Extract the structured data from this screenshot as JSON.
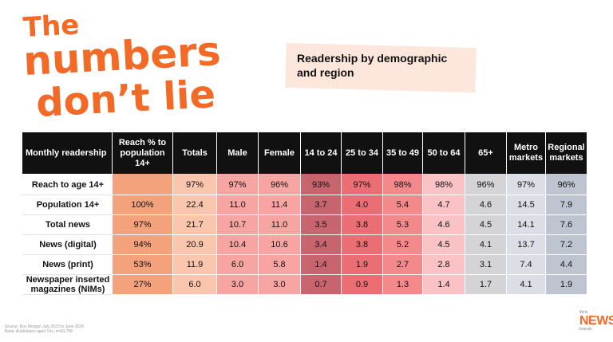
{
  "hero": {
    "line1": "The",
    "line2": "numbers",
    "line3": "don’t lie"
  },
  "subtitle": "Readership by demographic and region",
  "table": {
    "headers": [
      "Monthly readership",
      "Reach % to population 14+",
      "Totals",
      "Male",
      "Female",
      "14 to 24",
      "25 to 34",
      "35 to 49",
      "50 to 64",
      "65+",
      "Metro markets",
      "Regional markets"
    ],
    "rows": [
      {
        "label": "Reach to age 14+",
        "values": [
          "",
          "97%",
          "97%",
          "96%",
          "93%",
          "97%",
          "98%",
          "98%",
          "96%",
          "97%",
          "96%"
        ]
      },
      {
        "label": "Population 14+",
        "values": [
          "100%",
          "22.4",
          "11.0",
          "11.4",
          "3.7",
          "4.0",
          "5.4",
          "4.7",
          "4.6",
          "14.5",
          "7.9"
        ]
      },
      {
        "label": "Total news",
        "values": [
          "97%",
          "21.7",
          "10.7",
          "11.0",
          "3.5",
          "3.8",
          "5.3",
          "4.6",
          "4.5",
          "14.1",
          "7.6"
        ]
      },
      {
        "label": "News (digital)",
        "values": [
          "94%",
          "20.9",
          "10.4",
          "10.6",
          "3.4",
          "3.8",
          "5.2",
          "4.5",
          "4.1",
          "13.7",
          "7.2"
        ]
      },
      {
        "label": "News (print)",
        "values": [
          "53%",
          "11.9",
          "6.0",
          "5.8",
          "1.4",
          "1.9",
          "2.7",
          "2.8",
          "3.1",
          "7.4",
          "4.4"
        ]
      },
      {
        "label": "Newspaper inserted magazines (NIMs)",
        "values": [
          "27%",
          "6.0",
          "3.0",
          "3.0",
          "0.7",
          "0.9",
          "1.3",
          "1.4",
          "1.7",
          "4.1",
          "1.9"
        ]
      }
    ],
    "column_colors": [
      "#f4a27c",
      "#f9c5ad",
      "#f6a5a3",
      "#f6a5a3",
      "#c8646e",
      "#ec6e75",
      "#f4898c",
      "#f9c3c5",
      "#d4d4d6",
      "#dbdfe5",
      "#bec5d1"
    ]
  },
  "footnote": {
    "line1": "Source: Roy Morgan July 2023 to June 2024",
    "line2": "Base: Australians aged 14+; n=64,758"
  },
  "logo": {
    "top": "think",
    "main": "NEWS",
    "bottom": "brands"
  }
}
